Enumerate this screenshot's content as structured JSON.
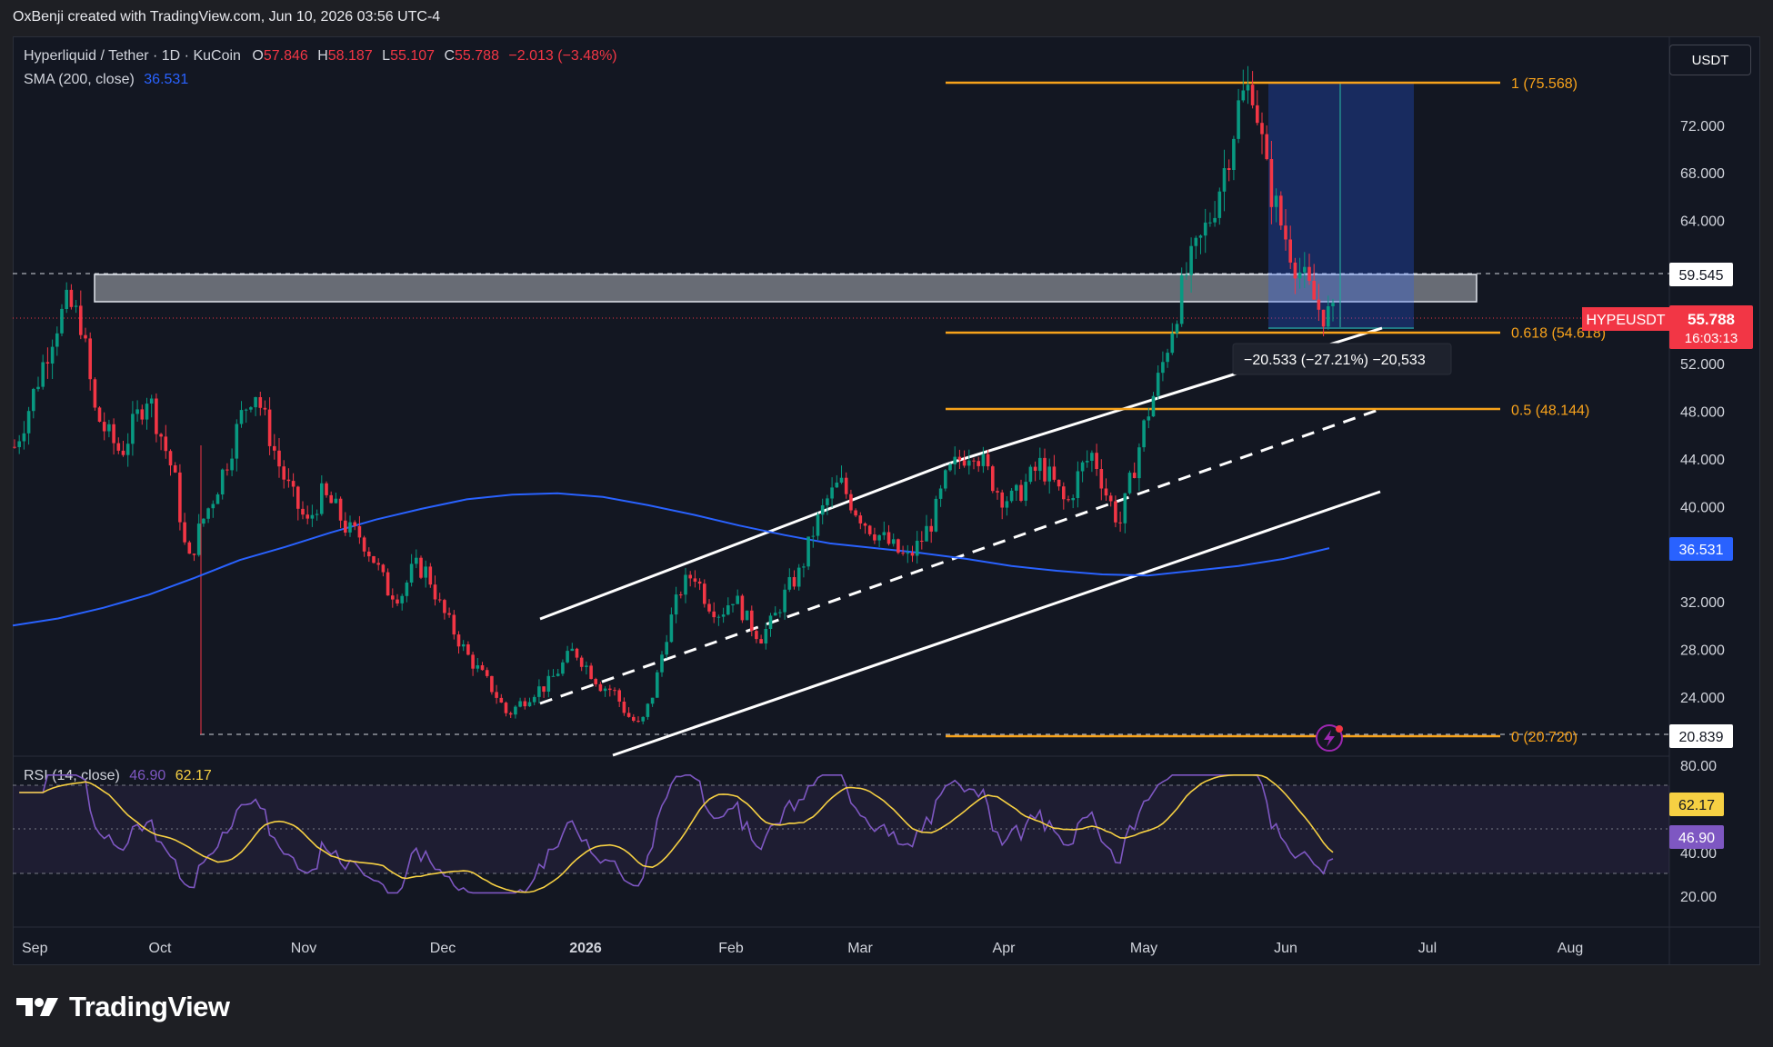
{
  "header": {
    "attribution": "OxBenji created with TradingView.com, Jun 10, 2026 03:56 UTC-4"
  },
  "legend": {
    "symbol_line": "Hyperliquid / Tether · 1D · KuCoin",
    "o_label": "O",
    "o_value": "57.846",
    "h_label": "H",
    "h_value": "58.187",
    "l_label": "L",
    "l_value": "55.107",
    "c_label": "C",
    "c_value": "55.788",
    "change": "−2.013 (−3.48%)",
    "sma_label": "SMA (200, close)",
    "sma_value": "36.531",
    "rsi_label": "RSI (14, close)",
    "rsi_value": "46.90",
    "rsi_ma_value": "62.17"
  },
  "currency_button": "USDT",
  "brand": "TradingView",
  "colors": {
    "up": "#089981",
    "down": "#f23645",
    "sma": "#2962ff",
    "fib": "#f7a21b",
    "rsi": "#7e57c2",
    "rsi_ma": "#f6d043",
    "background": "#131722"
  },
  "chart_data": {
    "type": "candlestick",
    "symbol": "HYPEUSDT",
    "interval": "1D",
    "price_axis": {
      "ticks": [
        "72.000",
        "68.000",
        "64.000",
        "59.545",
        "52.000",
        "48.000",
        "44.000",
        "40.000",
        "36.531",
        "32.000",
        "28.000",
        "24.000",
        "20.839"
      ],
      "ylim": [
        18,
        78
      ]
    },
    "time_axis": {
      "labels": [
        "Sep",
        "Oct",
        "Nov",
        "Dec",
        "2026",
        "Feb",
        "Mar",
        "Apr",
        "May",
        "Jun",
        "Jul",
        "Aug"
      ]
    },
    "last_price": {
      "symbol": "HYPEUSDT",
      "price": "55.788",
      "countdown": "16:03:13"
    },
    "price_labels": {
      "resistance": "59.545",
      "sma": "36.531",
      "low": "20.839"
    },
    "fibonacci": [
      {
        "label": "1 (75.568)",
        "level": 75.568
      },
      {
        "label": "0.618 (54.618)",
        "level": 54.618
      },
      {
        "label": "0.5 (48.144)",
        "level": 48.144
      },
      {
        "label": "0 (20.720)",
        "level": 20.72
      }
    ],
    "measure_label": "−20.533 (−27.21%) −20,533",
    "rsi": {
      "axis_ticks": [
        "80.00",
        "40.00",
        "20.00"
      ],
      "value_label": "46.90",
      "ma_label": "62.17",
      "bands": [
        70,
        30
      ]
    },
    "sma_series": [
      30.0,
      30.6,
      31.5,
      32.6,
      34.0,
      35.5,
      36.6,
      37.8,
      38.9,
      39.8,
      40.6,
      41.0,
      41.1,
      40.8,
      40.1,
      39.3,
      38.4,
      37.6,
      36.9,
      36.5,
      36.1,
      35.6,
      35.0,
      34.6,
      34.3,
      34.2,
      34.6,
      35.0,
      35.6,
      36.5
    ],
    "ohlc_points": [
      45.0,
      48.0,
      51.5,
      55.0,
      57.0,
      55.5,
      48.0,
      46.0,
      44.5,
      47.0,
      49.5,
      46.0,
      42.5,
      35.0,
      38.5,
      41.0,
      44.0,
      47.5,
      50.0,
      46.5,
      43.0,
      40.5,
      38.5,
      41.0,
      40.0,
      38.0,
      37.5,
      35.5,
      33.0,
      32.5,
      35.0,
      34.5,
      31.5,
      29.5,
      27.5,
      26.0,
      24.5,
      22.5,
      23.5,
      24.5,
      25.0,
      26.5,
      28.0,
      26.5,
      25.0,
      24.5,
      22.5,
      21.5,
      24.5,
      29.5,
      33.0,
      34.5,
      32.0,
      31.0,
      32.5,
      30.5,
      29.0,
      30.5,
      33.0,
      34.5,
      38.0,
      40.5,
      42.0,
      40.0,
      38.5,
      37.5,
      36.5,
      35.5,
      37.0,
      39.0,
      42.5,
      44.0,
      45.0,
      43.0,
      41.0,
      40.5,
      42.0,
      43.5,
      42.0,
      40.0,
      43.0,
      44.5,
      41.0,
      38.5,
      43.0,
      47.5,
      51.0,
      55.5,
      59.5,
      62.0,
      65.0,
      69.0,
      74.0,
      75.5,
      68.0,
      64.0,
      61.0,
      58.5,
      56.5,
      55.8
    ]
  }
}
